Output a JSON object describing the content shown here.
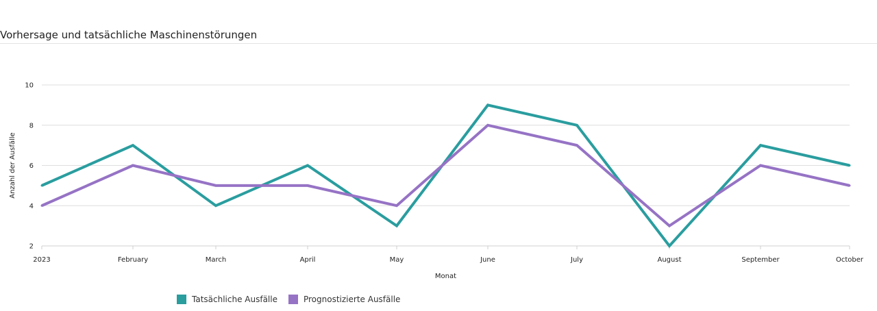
{
  "page": {
    "title": "Vorhersage und tatsächliche Maschinenstörungen"
  },
  "chart_data": {
    "type": "line",
    "title": "Vorhersage und tatsächliche Maschinenstörungen",
    "xlabel": "Monat",
    "ylabel": "Anzahl der Ausfälle",
    "categories": [
      "2023",
      "February",
      "March",
      "April",
      "May",
      "June",
      "July",
      "August",
      "September",
      "October"
    ],
    "ylim": [
      2,
      10
    ],
    "yticks": [
      2,
      4,
      6,
      8,
      10
    ],
    "grid": true,
    "legend_position": "bottom",
    "series": [
      {
        "name": "Tatsächliche Ausfälle",
        "color": "#2a9d9f",
        "values": [
          5,
          7,
          4,
          6,
          3,
          9,
          8,
          2,
          7,
          6
        ]
      },
      {
        "name": "Prognostizierte Ausfälle",
        "color": "#9673c5",
        "values": [
          4,
          6,
          5,
          5,
          4,
          8,
          7,
          3,
          6,
          5
        ]
      }
    ]
  }
}
